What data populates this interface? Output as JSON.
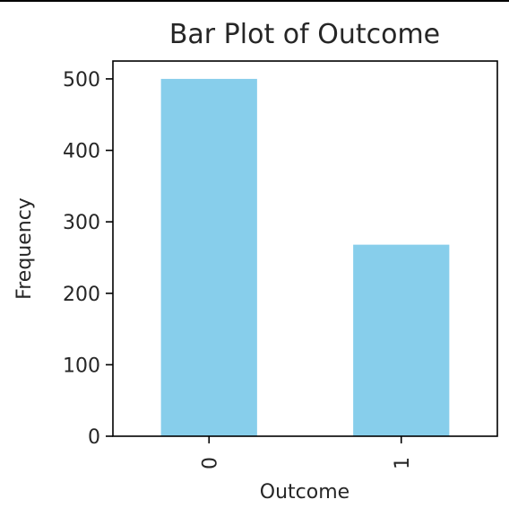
{
  "chart_data": {
    "type": "bar",
    "title": "Bar Plot of Outcome",
    "xlabel": "Outcome",
    "ylabel": "Frequency",
    "categories": [
      "0",
      "1"
    ],
    "values": [
      500,
      268
    ],
    "ylim": [
      0,
      525
    ],
    "yticks": [
      "0",
      "100",
      "200",
      "300",
      "400",
      "500"
    ],
    "ytick_values": [
      0,
      100,
      200,
      300,
      400,
      500
    ],
    "bar_color": "#87CEEB",
    "grid": false,
    "xtick_rotation": "vertical"
  }
}
